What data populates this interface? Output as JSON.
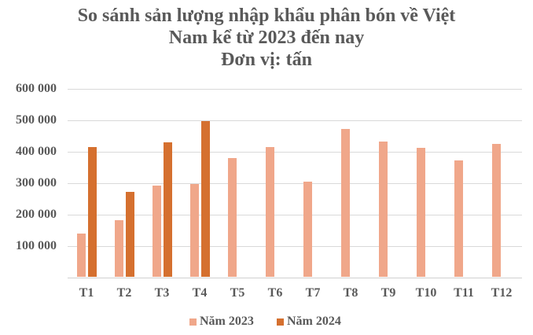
{
  "chart_data": {
    "type": "bar",
    "title": "So sánh sản lượng nhập khẩu phân bón về Việt Nam kể từ 2023 đến nay",
    "title_lines": [
      "So sánh sản lượng nhập khẩu phân bón về Việt",
      "Nam kể từ 2023 đến nay",
      "Đơn vị: tấn"
    ],
    "subtitle": "Đơn vị: tấn",
    "xlabel": "",
    "ylabel": "",
    "ylim": [
      0,
      600000
    ],
    "yticks": [
      0,
      100000,
      200000,
      300000,
      400000,
      500000,
      600000
    ],
    "ytick_labels": [
      "",
      "100 000",
      "200 000",
      "300 000",
      "400 000",
      "500 000",
      "600 000"
    ],
    "grid": true,
    "legend_position": "bottom",
    "categories": [
      "T1",
      "T2",
      "T3",
      "T4",
      "T5",
      "T6",
      "T7",
      "T8",
      "T9",
      "T10",
      "T11",
      "T12"
    ],
    "series": [
      {
        "name": "Năm 2023",
        "color": "#f0a78a",
        "values": [
          138000,
          181000,
          291000,
          296000,
          378000,
          413000,
          303000,
          471000,
          431000,
          411000,
          371000,
          423000
        ]
      },
      {
        "name": "Năm 2024",
        "color": "#d5702f",
        "values": [
          413000,
          271000,
          428000,
          496000,
          null,
          null,
          null,
          null,
          null,
          null,
          null,
          null
        ]
      }
    ]
  },
  "colors": {
    "text": "#595959",
    "grid": "#d9d9d9",
    "series_2023": "#f0a78a",
    "series_2024": "#d5702f"
  }
}
